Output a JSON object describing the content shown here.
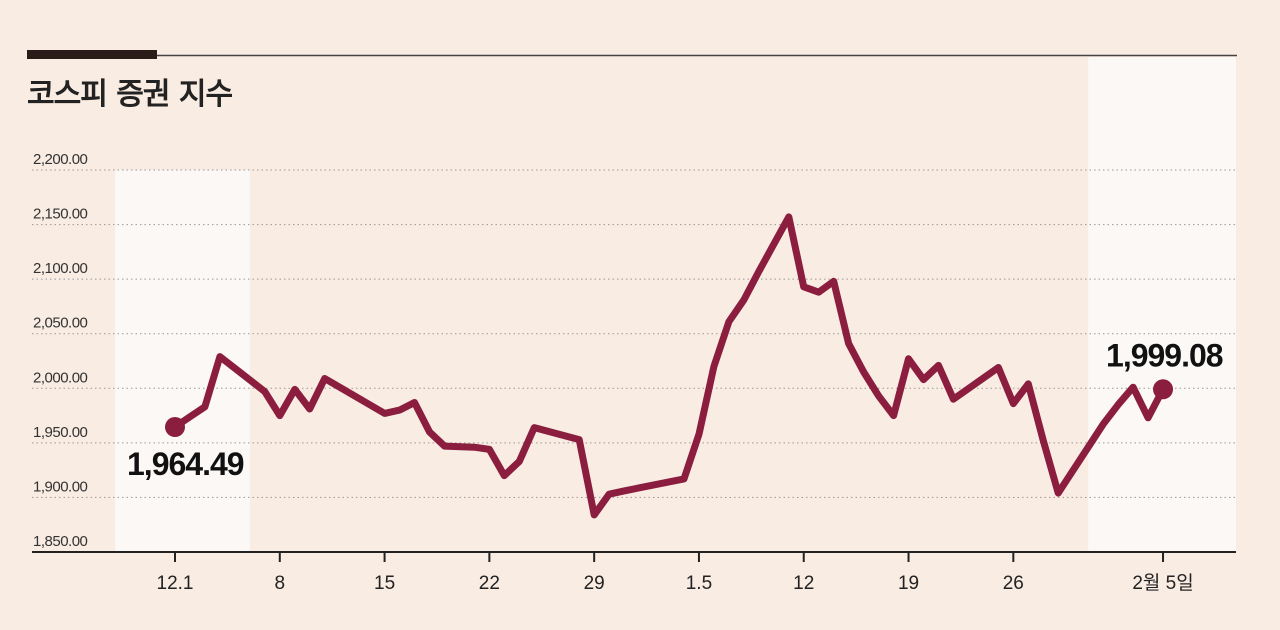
{
  "colors": {
    "background": "#f9ece3",
    "highlight": "#fbf8f6",
    "line": "#8b1d3f",
    "axis": "#222222",
    "grid": "#999999"
  },
  "chart_data": {
    "type": "line",
    "title": "코스피 증권 지수",
    "ylim": [
      1850,
      2200
    ],
    "yticks": [
      1850,
      1900,
      1950,
      2000,
      2050,
      2100,
      2150,
      2200
    ],
    "ytick_labels": [
      "1,850.00",
      "1,900.00",
      "1,950.00",
      "2,000.00",
      "2,050.00",
      "2,100.00",
      "2,150.00",
      "2,200.00"
    ],
    "xlim": [
      0,
      67
    ],
    "xticks": [
      {
        "x": 0,
        "label": "12.1"
      },
      {
        "x": 7,
        "label": "8"
      },
      {
        "x": 14,
        "label": "15"
      },
      {
        "x": 21,
        "label": "22"
      },
      {
        "x": 28,
        "label": "29"
      },
      {
        "x": 35,
        "label": "1.5"
      },
      {
        "x": 42,
        "label": "12"
      },
      {
        "x": 49,
        "label": "19"
      },
      {
        "x": 56,
        "label": "26"
      },
      {
        "x": 66,
        "label": "2월 5일"
      }
    ],
    "grid": "horizontal-dotted",
    "highlight_bands": [
      [
        -4,
        5
      ],
      [
        61,
        71
      ]
    ],
    "series": [
      {
        "x": [
          0,
          1,
          2,
          3,
          6,
          7,
          8,
          9,
          10,
          14,
          15,
          16,
          17,
          18,
          20,
          21,
          22,
          23,
          24,
          27,
          28,
          29,
          30,
          34,
          35,
          36,
          37,
          38,
          39,
          40,
          41,
          42,
          43,
          44,
          45,
          46,
          47,
          48,
          49,
          50,
          51,
          52,
          55,
          56,
          57,
          58,
          59,
          60,
          61,
          62,
          63,
          64,
          65,
          66
        ],
        "y": [
          1964.49,
          1974,
          1983,
          2029,
          1997,
          1975,
          1999,
          1981,
          2009,
          1977,
          1980,
          1987,
          1960,
          1947,
          1946,
          1944,
          1920,
          1933,
          1964,
          1953,
          1884,
          1903,
          1906,
          1917,
          1958,
          2020,
          2061,
          2081,
          2107,
          2132,
          2157,
          2093,
          2088,
          2098,
          2041,
          2015,
          1993,
          1975,
          2027,
          2008,
          2021,
          1990,
          2019,
          1986,
          2004,
          1952,
          1904,
          1925,
          1946,
          1967,
          1985,
          2001,
          1973,
          1999.08
        ]
      }
    ],
    "annotations": [
      {
        "label": "1,964.49",
        "x": 0,
        "y": 1964.49
      },
      {
        "label": "1,999.08",
        "x": 66,
        "y": 1999.08
      }
    ]
  }
}
